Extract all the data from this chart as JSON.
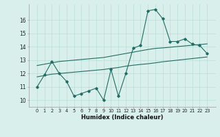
{
  "x": [
    0,
    1,
    2,
    3,
    4,
    5,
    6,
    7,
    8,
    9,
    10,
    11,
    12,
    13,
    14,
    15,
    16,
    17,
    18,
    19,
    20,
    21,
    22,
    23
  ],
  "y_main": [
    11.0,
    11.9,
    12.9,
    12.0,
    11.4,
    10.3,
    10.5,
    10.7,
    10.9,
    10.0,
    12.3,
    10.3,
    12.0,
    13.9,
    14.1,
    16.7,
    16.8,
    16.1,
    14.4,
    14.4,
    14.6,
    14.2,
    14.1,
    13.5
  ],
  "y_trend1": [
    12.6,
    12.7,
    12.8,
    12.9,
    12.95,
    13.0,
    13.05,
    13.1,
    13.15,
    13.2,
    13.3,
    13.4,
    13.5,
    13.6,
    13.7,
    13.8,
    13.88,
    13.92,
    13.97,
    14.02,
    14.07,
    14.12,
    14.17,
    14.22
  ],
  "y_trend2": [
    11.75,
    11.85,
    11.95,
    12.0,
    12.05,
    12.1,
    12.15,
    12.2,
    12.25,
    12.3,
    12.38,
    12.45,
    12.55,
    12.62,
    12.68,
    12.73,
    12.8,
    12.88,
    12.94,
    13.0,
    13.06,
    13.12,
    13.18,
    13.24
  ],
  "color": "#226b62",
  "bg_color": "#d9efec",
  "grid_color": "#b8ddd8",
  "xlabel": "Humidex (Indice chaleur)",
  "ylim": [
    9.5,
    17.2
  ],
  "yticks": [
    10,
    11,
    12,
    13,
    14,
    15,
    16
  ],
  "xticks": [
    0,
    1,
    2,
    3,
    4,
    5,
    6,
    7,
    8,
    9,
    10,
    11,
    12,
    13,
    14,
    15,
    16,
    17,
    18,
    19,
    20,
    21,
    22,
    23
  ]
}
